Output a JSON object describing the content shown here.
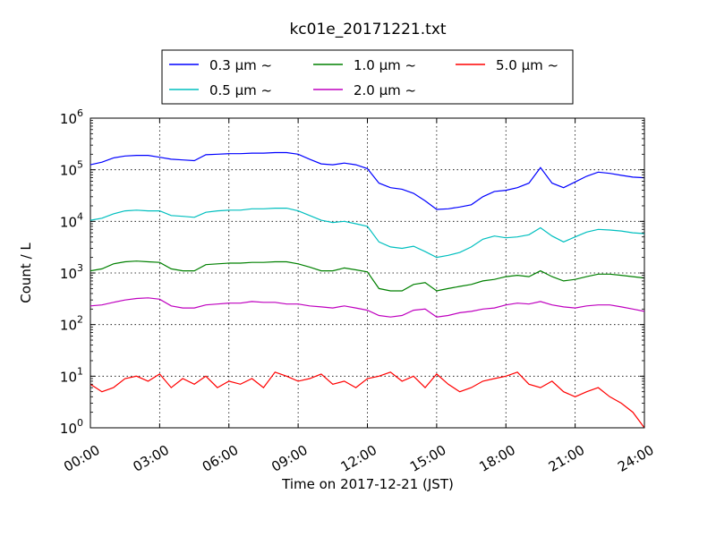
{
  "chart_data": {
    "type": "line",
    "title": "kc01e_20171221.txt",
    "xlabel": "Time on 2017-12-21 (JST)",
    "ylabel": "Count / L",
    "y_scale": "log",
    "ylim": [
      1,
      1000000
    ],
    "xlim": [
      "00:00",
      "24:00"
    ],
    "x_ticks": [
      "00:00",
      "03:00",
      "06:00",
      "09:00",
      "12:00",
      "15:00",
      "18:00",
      "21:00",
      "24:00"
    ],
    "y_ticks": [
      "10^0",
      "10^1",
      "10^2",
      "10^3",
      "10^4",
      "10^5",
      "10^6"
    ],
    "grid": true,
    "legend_position": "top",
    "x_hours": [
      0,
      0.5,
      1,
      1.5,
      2,
      2.5,
      3,
      3.5,
      4,
      4.5,
      5,
      5.5,
      6,
      6.5,
      7,
      7.5,
      8,
      8.5,
      9,
      9.5,
      10,
      10.5,
      11,
      11.5,
      12,
      12.5,
      13,
      13.5,
      14,
      14.5,
      15,
      15.5,
      16,
      16.5,
      17,
      17.5,
      18,
      18.5,
      19,
      19.5,
      20,
      20.5,
      21,
      21.5,
      22,
      22.5,
      23,
      23.5,
      24
    ],
    "series": [
      {
        "name": "0.3 μm ~",
        "color": "#0000ff",
        "values": [
          125000,
          140000,
          170000,
          185000,
          190000,
          190000,
          175000,
          160000,
          155000,
          150000,
          195000,
          200000,
          205000,
          205000,
          210000,
          210000,
          215000,
          215000,
          200000,
          160000,
          130000,
          125000,
          135000,
          125000,
          105000,
          55000,
          45000,
          42000,
          35000,
          25000,
          17000,
          17500,
          19000,
          21000,
          30000,
          38000,
          40000,
          45000,
          55000,
          110000,
          55000,
          45000,
          58000,
          75000,
          90000,
          85000,
          78000,
          72000,
          70000
        ]
      },
      {
        "name": "0.5 μm ~",
        "color": "#00bfbf",
        "values": [
          10500,
          11500,
          14000,
          16000,
          16500,
          16000,
          16000,
          13000,
          12500,
          12000,
          15000,
          16000,
          16500,
          16500,
          17500,
          17500,
          18000,
          18000,
          16000,
          13000,
          10500,
          9500,
          10000,
          9000,
          8000,
          4000,
          3200,
          3000,
          3300,
          2600,
          2000,
          2200,
          2500,
          3200,
          4500,
          5200,
          4800,
          5000,
          5500,
          7500,
          5200,
          4000,
          5000,
          6200,
          7000,
          6800,
          6500,
          6000,
          5800
        ]
      },
      {
        "name": "1.0 μm ~",
        "color": "#008000",
        "values": [
          1100,
          1200,
          1500,
          1650,
          1700,
          1650,
          1600,
          1200,
          1100,
          1100,
          1450,
          1500,
          1550,
          1550,
          1600,
          1600,
          1650,
          1650,
          1500,
          1300,
          1100,
          1100,
          1250,
          1150,
          1050,
          500,
          450,
          450,
          600,
          650,
          450,
          500,
          550,
          600,
          700,
          750,
          850,
          900,
          850,
          1100,
          850,
          700,
          750,
          850,
          950,
          950,
          900,
          850,
          800
        ]
      },
      {
        "name": "2.0 μm ~",
        "color": "#bf00bf",
        "values": [
          230,
          240,
          270,
          300,
          320,
          330,
          310,
          230,
          210,
          210,
          240,
          250,
          260,
          260,
          280,
          270,
          270,
          250,
          250,
          230,
          220,
          210,
          230,
          210,
          190,
          150,
          140,
          150,
          190,
          200,
          140,
          150,
          170,
          180,
          200,
          210,
          240,
          260,
          250,
          280,
          240,
          220,
          210,
          230,
          240,
          240,
          220,
          200,
          180
        ]
      },
      {
        "name": "5.0 μm ~",
        "color": "#ff0000",
        "values": [
          7,
          5,
          6,
          9,
          10,
          8,
          11,
          6,
          9,
          7,
          10,
          6,
          8,
          7,
          9,
          6,
          12,
          10,
          8,
          9,
          11,
          7,
          8,
          6,
          9,
          10,
          12,
          8,
          10,
          6,
          11,
          7,
          5,
          6,
          8,
          9,
          10,
          12,
          7,
          6,
          8,
          5,
          4,
          5,
          6,
          4,
          3,
          2,
          1
        ]
      }
    ]
  }
}
